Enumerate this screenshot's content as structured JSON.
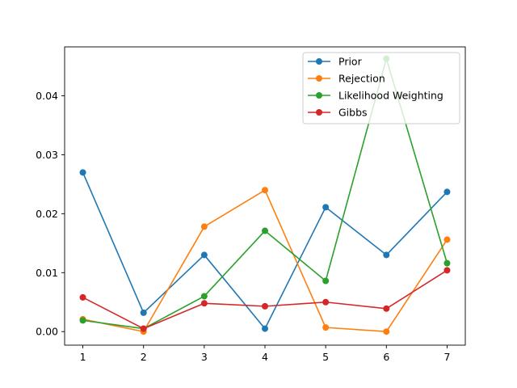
{
  "chart_data": {
    "type": "line",
    "title": "",
    "xlabel": "",
    "ylabel": "",
    "x": [
      1,
      2,
      3,
      4,
      5,
      6,
      7
    ],
    "xlim": [
      0.7,
      7.3
    ],
    "ylim": [
      -0.0023,
      0.0483
    ],
    "xticks": [
      1,
      2,
      3,
      4,
      5,
      6,
      7
    ],
    "xtick_labels": [
      "1",
      "2",
      "3",
      "4",
      "5",
      "6",
      "7"
    ],
    "yticks": [
      0.0,
      0.01,
      0.02,
      0.03,
      0.04
    ],
    "ytick_labels": [
      "0.00",
      "0.01",
      "0.02",
      "0.03",
      "0.04"
    ],
    "grid": false,
    "legend_position": "top-right",
    "series": [
      {
        "name": "Prior",
        "color": "#1f77b4",
        "values": [
          0.027,
          0.0032,
          0.013,
          0.0005,
          0.0211,
          0.013,
          0.0237
        ]
      },
      {
        "name": "Rejection",
        "color": "#ff7f0e",
        "values": [
          0.0021,
          0.0,
          0.0178,
          0.024,
          0.0007,
          0.0,
          0.0156
        ]
      },
      {
        "name": "Likelihood Weighting",
        "color": "#2ca02c",
        "values": [
          0.0019,
          0.0005,
          0.006,
          0.0171,
          0.0086,
          0.0463,
          0.0116
        ]
      },
      {
        "name": "Gibbs",
        "color": "#d62728",
        "values": [
          0.0058,
          0.0005,
          0.0048,
          0.0043,
          0.005,
          0.0039,
          0.0104
        ]
      }
    ]
  }
}
